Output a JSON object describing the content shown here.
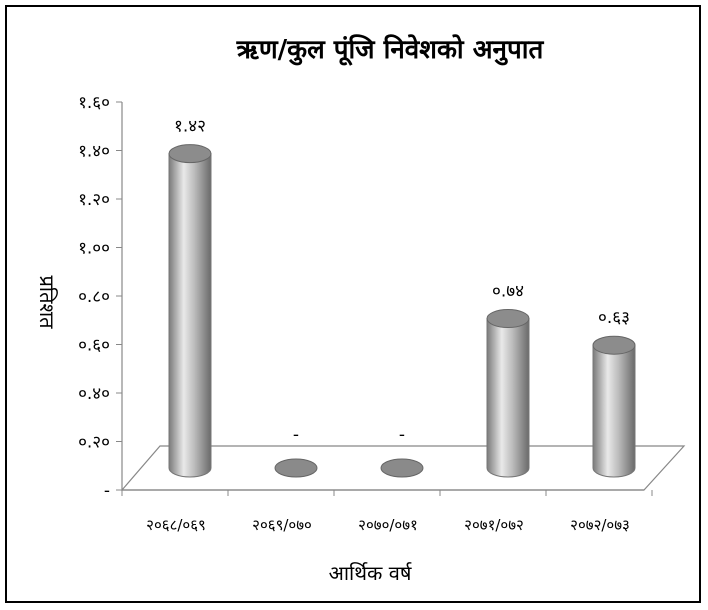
{
  "chart_data": {
    "type": "bar",
    "title": "ऋण/कुल पूंजि निवेशको अनुपात",
    "xlabel": "आर्थिक वर्ष",
    "ylabel": "प्रतिशत",
    "categories": [
      "२०६८/०६९",
      "२०६९/०७०",
      "२०७०/०७१",
      "२०७१/०७२",
      "२०७२/०७३"
    ],
    "values": [
      1.42,
      null,
      null,
      0.74,
      0.63
    ],
    "value_labels": [
      "१.४२",
      "-",
      "-",
      "०.७४",
      "०.६३"
    ],
    "yticks": [
      {
        "value": 0,
        "label": "-"
      },
      {
        "value": 0.2,
        "label": "०.२०"
      },
      {
        "value": 0.4,
        "label": "०.४०"
      },
      {
        "value": 0.6,
        "label": "०.६०"
      },
      {
        "value": 0.8,
        "label": "०.८०"
      },
      {
        "value": 1.0,
        "label": "१.००"
      },
      {
        "value": 1.2,
        "label": "१.२०"
      },
      {
        "value": 1.4,
        "label": "१.४०"
      },
      {
        "value": 1.6,
        "label": "१.६०"
      }
    ],
    "ylim": [
      0,
      1.6
    ],
    "grid": false,
    "style": "3d-cylinder",
    "colors": {
      "bar": "#a6a6a6",
      "bar_dark": "#6e6e6e",
      "bar_light": "#e8e8e8"
    }
  }
}
